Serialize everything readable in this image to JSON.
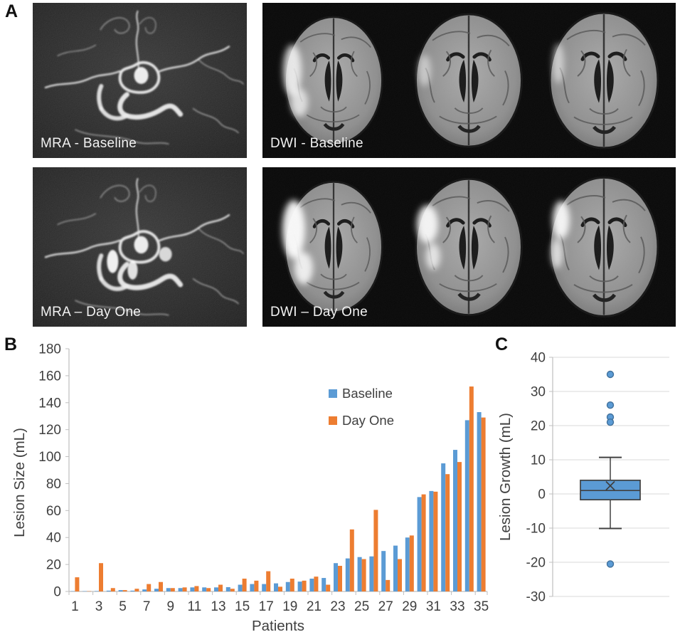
{
  "panel_a": {
    "label": "A",
    "images": [
      {
        "id": "mra-baseline",
        "caption": "MRA - Baseline"
      },
      {
        "id": "dwi-baseline",
        "caption": "DWI - Baseline"
      },
      {
        "id": "mra-dayone",
        "caption": "MRA – Day One"
      },
      {
        "id": "dwi-dayone",
        "caption": "DWI – Day One"
      }
    ]
  },
  "panel_b": {
    "label": "B"
  },
  "panel_c": {
    "label": "C"
  },
  "colors": {
    "baseline_blue": "#5B9BD5",
    "dayone_orange": "#ED7D31",
    "axis_line": "#BFBFBF",
    "gridline": "#D9D9D9",
    "axis_text": "#3F3F3F",
    "box_edge": "#404040",
    "outlier_edge": "#41719C"
  },
  "chart_data": [
    {
      "type": "bar",
      "panel": "B",
      "title": "",
      "xlabel": "Patients",
      "ylabel": "Lesion Size (mL)",
      "ylim": [
        0,
        180
      ],
      "ytick_step": 20,
      "xtick_label_interval": 2,
      "grid": false,
      "legend_position": "upper-right-inside",
      "categories": [
        1,
        2,
        3,
        4,
        5,
        6,
        7,
        8,
        9,
        10,
        11,
        12,
        13,
        14,
        15,
        16,
        17,
        18,
        19,
        20,
        21,
        22,
        23,
        24,
        25,
        26,
        27,
        28,
        29,
        30,
        31,
        32,
        33,
        34,
        35
      ],
      "series": [
        {
          "name": "Baseline",
          "color": "#5B9BD5",
          "values": [
            0.2,
            0.2,
            0.3,
            0.6,
            1,
            0.6,
            1.5,
            2,
            2.5,
            2.5,
            3,
            3,
            3,
            3.2,
            5,
            5.5,
            5.5,
            6,
            7,
            7.3,
            9.5,
            10,
            21,
            24.5,
            25.5,
            26,
            30,
            34,
            40,
            70,
            74.5,
            95,
            105,
            127,
            133
          ]
        },
        {
          "name": "Day One",
          "color": "#ED7D31",
          "values": [
            10.5,
            0.2,
            21,
            2.5,
            1,
            2,
            5.5,
            7,
            2.5,
            3,
            4,
            2.5,
            5,
            2,
            9.5,
            8,
            15,
            3.5,
            9.5,
            8,
            11,
            5,
            19,
            46,
            24,
            60.5,
            8.5,
            24,
            41.5,
            72,
            74,
            87,
            96,
            152,
            129
          ]
        }
      ]
    },
    {
      "type": "boxplot",
      "panel": "C",
      "title": "",
      "xlabel": "",
      "ylabel": "Lesion Growth (mL)",
      "ylim": [
        -30,
        40
      ],
      "ytick_step": 10,
      "grid": true,
      "box": {
        "whisker_low": -10.1,
        "q1": -1.7,
        "median": 1.0,
        "q3": 4.0,
        "whisker_high": 10.7,
        "mean": 2.4,
        "outliers": [
          35,
          26,
          22.5,
          21,
          -20.5
        ],
        "fill": "#5B9BD5",
        "edge": "#404040"
      }
    }
  ]
}
